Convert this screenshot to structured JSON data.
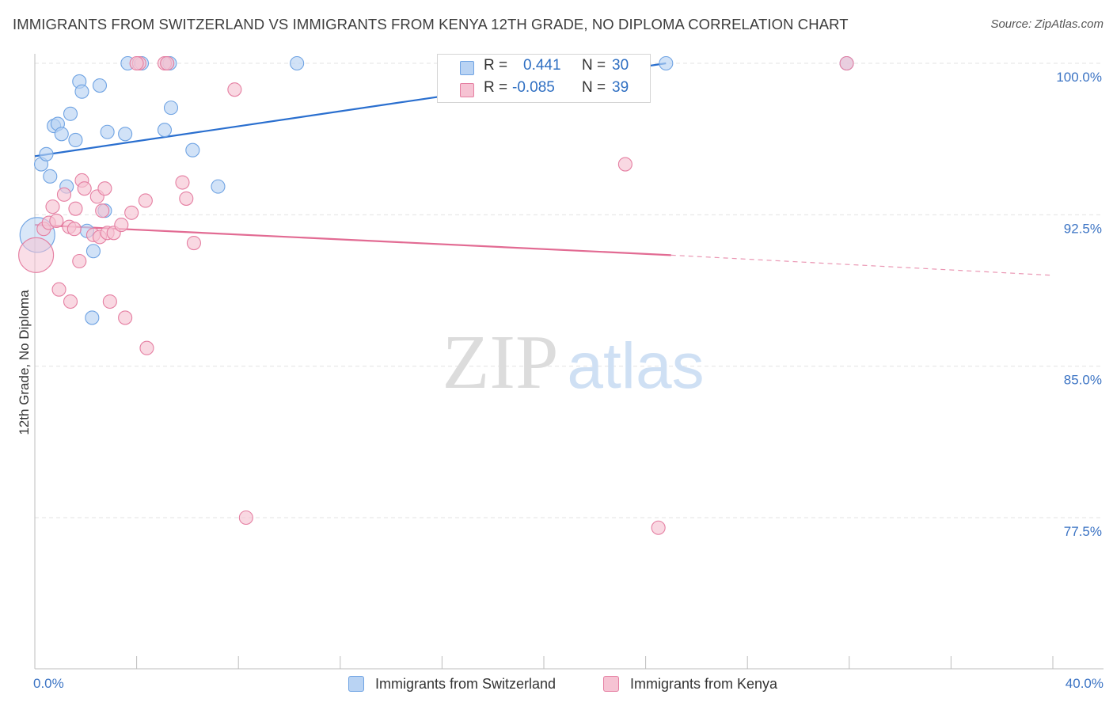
{
  "header": {
    "title": "IMMIGRANTS FROM SWITZERLAND VS IMMIGRANTS FROM KENYA 12TH GRADE, NO DIPLOMA CORRELATION CHART",
    "source": "Source: ZipAtlas.com"
  },
  "legend": {
    "r_label": "R =",
    "n_label": "N =",
    "items": [
      {
        "name": "Immigrants from Switzerland",
        "r": "0.441",
        "n": "30",
        "color": "#6fa3e3",
        "fill": "#b9d3f3"
      },
      {
        "name": "Immigrants from Kenya",
        "r": "-0.085",
        "n": "39",
        "color": "#e57fa2",
        "fill": "#f6c3d3"
      }
    ]
  },
  "watermark": {
    "zip": "ZIP",
    "atlas": "atlas"
  },
  "colors": {
    "blue_line": "#2a6fcf",
    "pink_line": "#e26b93",
    "grid": "#e3e3e3",
    "tick_label": "#3c74c4"
  },
  "chart_data": {
    "type": "scatter",
    "title": "IMMIGRANTS FROM SWITZERLAND VS IMMIGRANTS FROM KENYA 12TH GRADE, NO DIPLOMA CORRELATION CHART",
    "xlabel": "",
    "ylabel": "12th Grade, No Diploma",
    "xlim": [
      0,
      40
    ],
    "ylim": [
      70.0,
      101.0
    ],
    "x_tick_labels": [
      {
        "value": 0,
        "label": "0.0%"
      },
      {
        "value": 40,
        "label": "40.0%"
      }
    ],
    "y_ticks": [
      {
        "value": 100.0,
        "label": "100.0%"
      },
      {
        "value": 92.5,
        "label": "92.5%"
      },
      {
        "value": 85.0,
        "label": "85.0%"
      },
      {
        "value": 77.5,
        "label": "77.5%"
      }
    ],
    "series": [
      {
        "name": "Immigrants from Switzerland",
        "trend": {
          "x": [
            0,
            24.8
          ],
          "y": [
            95.4,
            100.0
          ],
          "dashed_to": null
        },
        "points": [
          {
            "x": 0.1,
            "y": 91.5,
            "big": true
          },
          {
            "x": 0.25,
            "y": 95.0
          },
          {
            "x": 0.45,
            "y": 95.5
          },
          {
            "x": 0.6,
            "y": 94.4
          },
          {
            "x": 0.75,
            "y": 96.9
          },
          {
            "x": 0.9,
            "y": 97.0
          },
          {
            "x": 1.05,
            "y": 96.5
          },
          {
            "x": 1.25,
            "y": 93.9
          },
          {
            "x": 1.4,
            "y": 97.5
          },
          {
            "x": 1.6,
            "y": 96.2
          },
          {
            "x": 1.75,
            "y": 99.1
          },
          {
            "x": 1.85,
            "y": 98.6
          },
          {
            "x": 2.05,
            "y": 91.7
          },
          {
            "x": 2.3,
            "y": 90.7
          },
          {
            "x": 2.55,
            "y": 98.9
          },
          {
            "x": 2.75,
            "y": 92.7
          },
          {
            "x": 2.25,
            "y": 87.4
          },
          {
            "x": 2.85,
            "y": 96.6
          },
          {
            "x": 3.55,
            "y": 96.5
          },
          {
            "x": 3.65,
            "y": 100.0
          },
          {
            "x": 4.2,
            "y": 100.0
          },
          {
            "x": 5.1,
            "y": 96.7
          },
          {
            "x": 5.2,
            "y": 100.0
          },
          {
            "x": 5.3,
            "y": 100.0
          },
          {
            "x": 5.35,
            "y": 97.8
          },
          {
            "x": 6.2,
            "y": 95.7
          },
          {
            "x": 7.2,
            "y": 93.9
          },
          {
            "x": 10.3,
            "y": 100.0
          },
          {
            "x": 24.8,
            "y": 100.0
          },
          {
            "x": 31.9,
            "y": 100.0
          }
        ]
      },
      {
        "name": "Immigrants from Kenya",
        "trend": {
          "x": [
            0,
            25.0
          ],
          "y": [
            92.0,
            90.5
          ],
          "dashed_to": {
            "x": 40,
            "y": 89.5
          }
        },
        "points": [
          {
            "x": 0.05,
            "y": 90.5,
            "big": true
          },
          {
            "x": 0.35,
            "y": 91.8
          },
          {
            "x": 0.55,
            "y": 92.1
          },
          {
            "x": 0.7,
            "y": 92.9
          },
          {
            "x": 0.85,
            "y": 92.2
          },
          {
            "x": 0.95,
            "y": 88.8
          },
          {
            "x": 1.15,
            "y": 93.5
          },
          {
            "x": 1.35,
            "y": 91.9
          },
          {
            "x": 1.4,
            "y": 88.2
          },
          {
            "x": 1.55,
            "y": 91.8
          },
          {
            "x": 1.6,
            "y": 92.8
          },
          {
            "x": 1.75,
            "y": 90.2
          },
          {
            "x": 1.85,
            "y": 94.2
          },
          {
            "x": 1.95,
            "y": 93.8
          },
          {
            "x": 2.3,
            "y": 91.5
          },
          {
            "x": 2.45,
            "y": 93.4
          },
          {
            "x": 2.55,
            "y": 91.4
          },
          {
            "x": 2.65,
            "y": 92.7
          },
          {
            "x": 2.75,
            "y": 93.8
          },
          {
            "x": 2.85,
            "y": 91.6
          },
          {
            "x": 2.95,
            "y": 88.2
          },
          {
            "x": 3.1,
            "y": 91.6
          },
          {
            "x": 3.4,
            "y": 92.0
          },
          {
            "x": 3.55,
            "y": 87.4
          },
          {
            "x": 3.8,
            "y": 92.6
          },
          {
            "x": 4.1,
            "y": 100.0
          },
          {
            "x": 4.35,
            "y": 93.2
          },
          {
            "x": 4.4,
            "y": 85.9
          },
          {
            "x": 5.1,
            "y": 100.0
          },
          {
            "x": 5.2,
            "y": 100.0
          },
          {
            "x": 5.8,
            "y": 94.1
          },
          {
            "x": 5.95,
            "y": 93.3
          },
          {
            "x": 6.25,
            "y": 91.1
          },
          {
            "x": 7.85,
            "y": 98.7
          },
          {
            "x": 8.3,
            "y": 77.5
          },
          {
            "x": 23.2,
            "y": 95.0
          },
          {
            "x": 24.5,
            "y": 77.0
          },
          {
            "x": 31.9,
            "y": 100.0
          },
          {
            "x": 4.0,
            "y": 100.0
          }
        ]
      }
    ]
  }
}
